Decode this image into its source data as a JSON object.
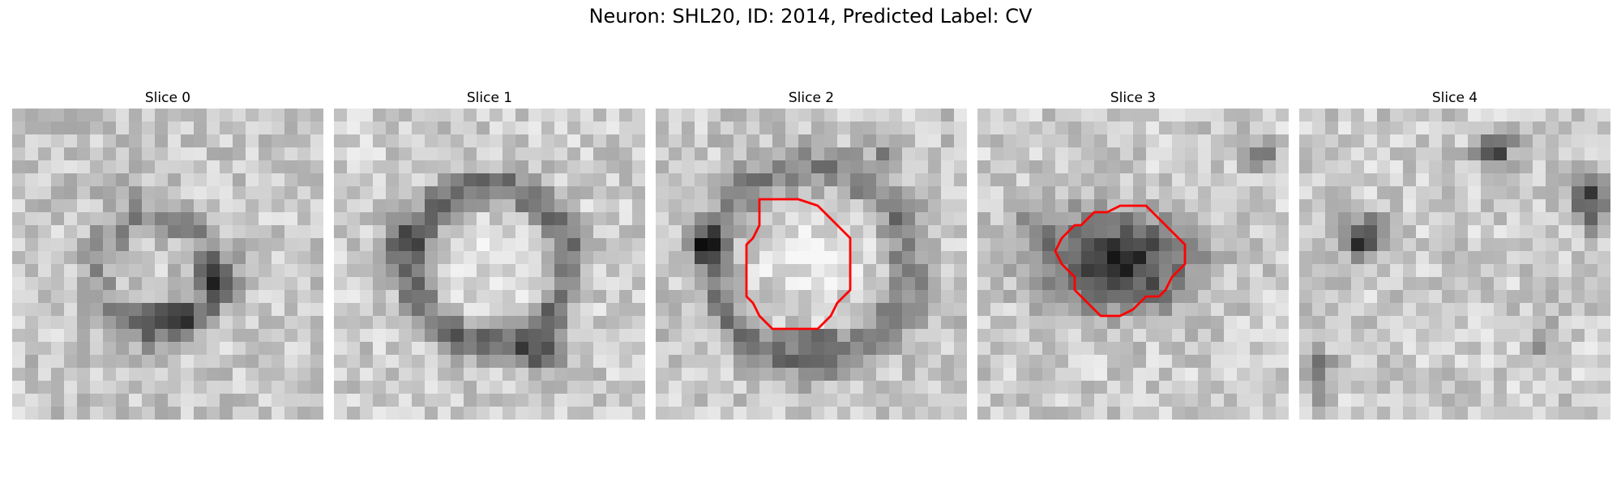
{
  "figure": {
    "title": "Neuron: SHL20, ID: 2014, Predicted Label: CV"
  },
  "panels": [
    {
      "title": "Slice 0",
      "has_contour": false
    },
    {
      "title": "Slice 1",
      "has_contour": false
    },
    {
      "title": "Slice 2",
      "has_contour": true
    },
    {
      "title": "Slice 3",
      "has_contour": true
    },
    {
      "title": "Slice 4",
      "has_contour": false
    }
  ],
  "colors": {
    "contour": "#ff0000",
    "background": "#ffffff",
    "colormap": "grayscale"
  }
}
